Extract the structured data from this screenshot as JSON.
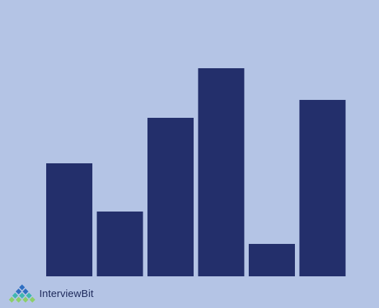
{
  "chart_data": {
    "type": "bar",
    "categories": [
      "",
      "",
      "",
      "",
      "",
      ""
    ],
    "values": [
      164,
      94,
      230,
      302,
      47,
      256
    ],
    "ylim": [
      0,
      320
    ],
    "grid": false,
    "legend": "none",
    "axes_visible": false
  },
  "colors": {
    "background": "#B4C4E5",
    "bar": "#232F6B",
    "logo_text": "#1E2A5C",
    "logo_mark_top": "#2F6FC2",
    "logo_mark_mid": "#3FB7B0",
    "logo_mark_bottom": "#8CCF6A"
  },
  "brand": {
    "name": "InterviewBit",
    "icon": "interviewbit-logo-icon"
  }
}
